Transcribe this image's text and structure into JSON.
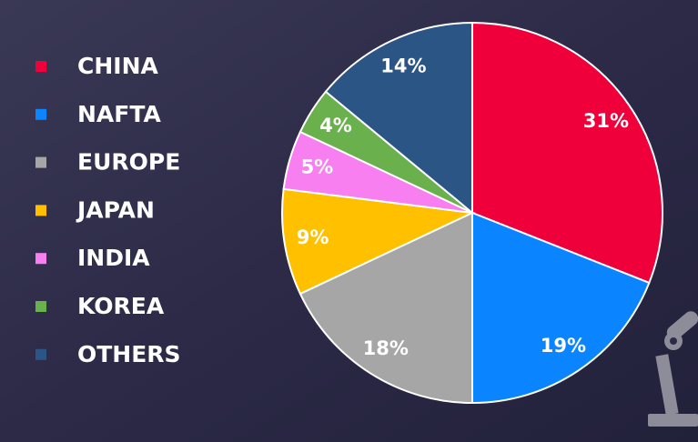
{
  "chart_data": {
    "type": "pie",
    "categories": [
      "CHINA",
      "NAFTA",
      "EUROPE",
      "JAPAN",
      "INDIA",
      "KOREA",
      "OTHERS"
    ],
    "values": [
      31,
      19,
      18,
      9,
      5,
      4,
      14
    ],
    "value_labels": [
      "31%",
      "19%",
      "18%",
      "9%",
      "5%",
      "4%",
      "14%"
    ],
    "colors": [
      "#f0003a",
      "#0a84ff",
      "#a6a6a6",
      "#ffc000",
      "#f77ff0",
      "#6ab04c",
      "#2a5585"
    ],
    "legend": "left"
  }
}
